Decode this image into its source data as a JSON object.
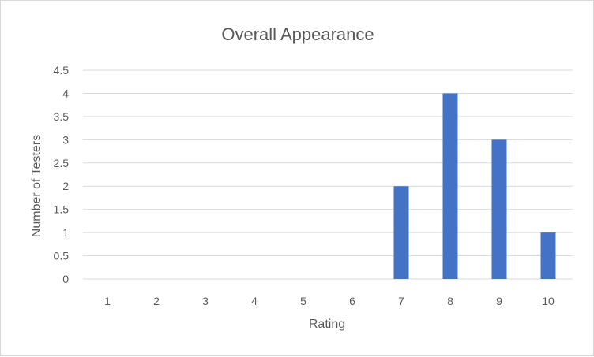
{
  "chart_data": {
    "type": "bar",
    "title": "Overall Appearance",
    "xlabel": "Rating",
    "ylabel": "Number of Testers",
    "categories": [
      "1",
      "2",
      "3",
      "4",
      "5",
      "6",
      "7",
      "8",
      "9",
      "10"
    ],
    "values": [
      0,
      0,
      0,
      0,
      0,
      0,
      2,
      4,
      3,
      1
    ],
    "ylim": [
      0,
      4.5
    ],
    "yticks": [
      "0",
      "0.5",
      "1",
      "1.5",
      "2",
      "2.5",
      "3",
      "3.5",
      "4",
      "4.5"
    ],
    "grid": true,
    "legend": "none",
    "bar_color": "#4472c4"
  }
}
